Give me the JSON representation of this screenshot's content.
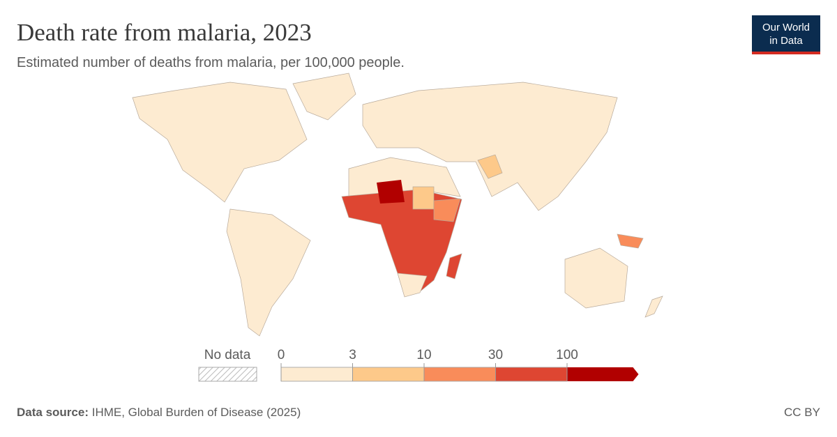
{
  "header": {
    "title": "Death rate from malaria, 2023",
    "subtitle": "Estimated number of deaths from malaria, per 100,000 people.",
    "logo": [
      "Our World",
      "in Data"
    ]
  },
  "legend": {
    "no_data_label": "No data",
    "bins": [
      0,
      3,
      10,
      30,
      100
    ],
    "colors": [
      "#fdebd1",
      "#fdc98a",
      "#f98c5a",
      "#de4632",
      "#b10000"
    ]
  },
  "footer": {
    "source_label": "Data source:",
    "source": "IHME, Global Burden of Disease (2025)",
    "license": "CC BY"
  }
}
